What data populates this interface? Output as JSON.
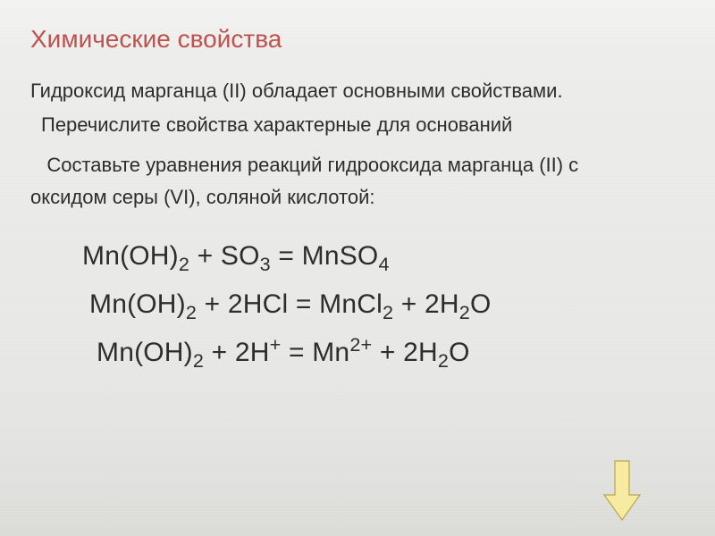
{
  "title": {
    "text": "Химические свойства",
    "color": "#c0504d",
    "fontsize": 28
  },
  "body_color": "#2b2b2b",
  "body_fontsize": 22,
  "eq_fontsize": 30,
  "para1": "Гидроксид марганца (II) обладает основными свойствами.",
  "para2": "Перечислите свойства характерные для оснований",
  "para3_l1": "   Составьте уравнения реакций гидрооксида марганца (II) с",
  "para3_l2": "оксидом серы (VI), соляной кислотой:",
  "eq1": {
    "p": [
      "Mn(OH)",
      {
        "sub": "2"
      },
      "  +  SO",
      {
        "sub": "3"
      },
      "  =  MnSO",
      {
        "sub": "4"
      }
    ]
  },
  "eq2": {
    "p": [
      "Mn(OH)",
      {
        "sub": "2"
      },
      " +  2HCl  =  MnCl",
      {
        "sub": "2"
      },
      "  +  2H",
      {
        "sub": "2"
      },
      "O"
    ]
  },
  "eq3": {
    "p": [
      "Mn(OH)",
      {
        "sub": "2"
      },
      " +  2H",
      {
        "sup": "+"
      },
      "  =  Mn",
      {
        "sup": "2+"
      },
      "  +  2H",
      {
        "sub": "2"
      },
      "O"
    ]
  },
  "arrow": {
    "fill": "#f7eaa1",
    "stroke": "#b8a64a"
  }
}
